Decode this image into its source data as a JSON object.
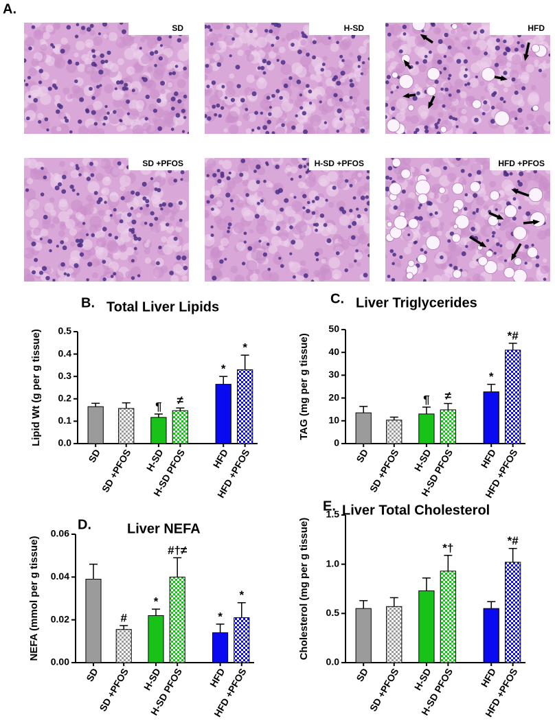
{
  "panel_a": {
    "label": "A.",
    "images": [
      {
        "label": "SD"
      },
      {
        "label": "H-SD"
      },
      {
        "label": "HFD"
      },
      {
        "label": "SD +PFOS"
      },
      {
        "label": "H-SD +PFOS"
      },
      {
        "label": "HFD +PFOS"
      }
    ]
  },
  "chart_data": [
    {
      "type": "bar",
      "panel": "B.",
      "title": "Total Liver Lipids",
      "y_label": "Lipid Wt (g per g tissue)",
      "categories": [
        "SD",
        "SD +PFOS",
        "H-SD",
        "H-SD PFOS",
        "HFD",
        "HFD +PFOS"
      ],
      "values": [
        0.165,
        0.157,
        0.117,
        0.147,
        0.265,
        0.33
      ],
      "errors": [
        0.015,
        0.025,
        0.015,
        0.012,
        0.035,
        0.065
      ],
      "annotations": [
        null,
        null,
        "¶",
        "≠",
        "*",
        "*"
      ],
      "colors": [
        "#9b9b9b",
        "#9b9b9b",
        "#19c219",
        "#19c219",
        "#0a0af0",
        "#0a0af0"
      ],
      "checkered": [
        false,
        true,
        false,
        true,
        false,
        true
      ],
      "ylim": [
        0,
        0.5
      ],
      "yticks": [
        {
          "value": 0,
          "label": "0.0"
        },
        0.1,
        0.2,
        0.3,
        0.4,
        0.5
      ]
    },
    {
      "type": "bar",
      "panel": "C.",
      "title": "Liver Triglycerides",
      "y_label": "TAG (mg per g tissue)",
      "categories": [
        "SD",
        "SD +PFOS",
        "H-SD",
        "H-SD PFOS",
        "HFD",
        "HFD +PFOS"
      ],
      "values": [
        13.5,
        10.3,
        13,
        14.8,
        22.7,
        41
      ],
      "errors": [
        2.8,
        1.3,
        3,
        2.8,
        3.3,
        3
      ],
      "annotations": [
        null,
        null,
        "¶",
        "≠",
        "*",
        "*#"
      ],
      "colors": [
        "#9b9b9b",
        "#9b9b9b",
        "#19c219",
        "#19c219",
        "#0a0af0",
        "#0a0af0"
      ],
      "checkered": [
        false,
        true,
        false,
        true,
        false,
        true
      ],
      "ylim": [
        0,
        50
      ],
      "yticks": [
        0,
        10,
        20,
        30,
        40,
        50
      ]
    },
    {
      "type": "bar",
      "panel": "D.",
      "title": "Liver NEFA",
      "y_label": "NEFA (mmol per g tissue)",
      "categories": [
        "SD",
        "SD +PFOS",
        "H-SD",
        "H-SD PFOS",
        "HFD",
        "HFD +PFOS"
      ],
      "values": [
        0.039,
        0.0155,
        0.022,
        0.04,
        0.014,
        0.021
      ],
      "errors": [
        0.007,
        0.0018,
        0.003,
        0.009,
        0.004,
        0.007
      ],
      "annotations": [
        null,
        "#",
        "*",
        "#†≠",
        "*",
        "*"
      ],
      "colors": [
        "#9b9b9b",
        "#9b9b9b",
        "#19c219",
        "#19c219",
        "#0a0af0",
        "#0a0af0"
      ],
      "checkered": [
        false,
        true,
        false,
        true,
        false,
        true
      ],
      "ylim": [
        0,
        0.06
      ],
      "yticks": [
        {
          "value": 0,
          "label": "0.00"
        },
        0.02,
        0.04,
        0.06
      ]
    },
    {
      "type": "bar",
      "panel": "E.",
      "title": "Liver Total Cholesterol",
      "y_label": "Cholesterol (mg per g tissue)",
      "categories": [
        "SD",
        "SD +PFOS",
        "H-SD",
        "H-SD PFOS",
        "HFD",
        "HFD +PFOS"
      ],
      "values": [
        0.55,
        0.57,
        0.73,
        0.93,
        0.55,
        1.02
      ],
      "errors": [
        0.08,
        0.09,
        0.13,
        0.16,
        0.07,
        0.14
      ],
      "annotations": [
        null,
        null,
        null,
        "*†",
        null,
        "*#"
      ],
      "colors": [
        "#9b9b9b",
        "#9b9b9b",
        "#19c219",
        "#19c219",
        "#0a0af0",
        "#0a0af0"
      ],
      "checkered": [
        false,
        true,
        false,
        true,
        false,
        true
      ],
      "ylim": [
        0,
        1.5
      ],
      "yticks": [
        {
          "value": 0,
          "label": "0.0"
        },
        0.5,
        {
          "value": 1,
          "label": "1.0"
        },
        1.5
      ]
    }
  ]
}
